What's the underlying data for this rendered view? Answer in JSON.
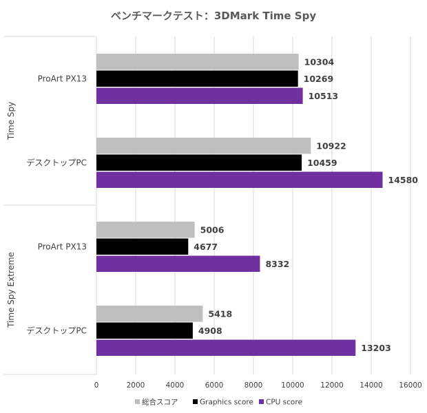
{
  "chart_data": {
    "type": "bar",
    "orientation": "horizontal",
    "title": "ベンチマークテスト：3DMark Time Spy",
    "groups": [
      {
        "label": "Time Spy",
        "categories": [
          "ProArt PX13",
          "デスクトップPC"
        ]
      },
      {
        "label": "Time Spy Extreme",
        "categories": [
          "ProArt PX13",
          "デスクトップPC"
        ]
      }
    ],
    "series": [
      {
        "name": "総合スコア",
        "color": "#bfbfbf",
        "values": [
          10304,
          10922,
          5006,
          5418
        ]
      },
      {
        "name": "Graphics score",
        "color": "#000000",
        "values": [
          10269,
          10459,
          4677,
          4908
        ]
      },
      {
        "name": "CPU score",
        "color": "#7030a0",
        "values": [
          10513,
          14580,
          8332,
          13203
        ]
      }
    ],
    "xlim": [
      0,
      16000
    ],
    "xticks": [
      "0",
      "2000",
      "4000",
      "6000",
      "8000",
      "10000",
      "12000",
      "14000",
      "16000"
    ],
    "grid": true,
    "legend": "bottom"
  }
}
